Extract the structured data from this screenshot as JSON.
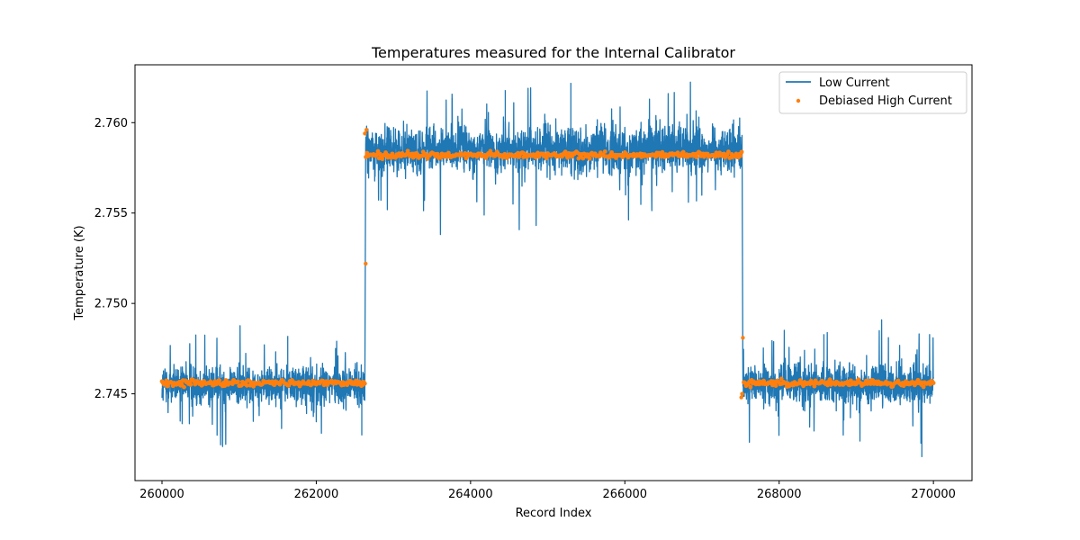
{
  "chart_data": {
    "type": "line",
    "title": "Temperatures measured for the Internal Calibrator",
    "xlabel": "Record Index",
    "ylabel": "Temperature (K)",
    "xlim": [
      259650,
      270500
    ],
    "ylim": [
      2.7402,
      2.7632
    ],
    "x_ticks": [
      260000,
      262000,
      264000,
      266000,
      268000,
      270000
    ],
    "x_tick_labels": [
      "260000",
      "262000",
      "264000",
      "266000",
      "268000",
      "270000"
    ],
    "y_ticks": [
      2.745,
      2.75,
      2.755,
      2.76
    ],
    "y_tick_labels": [
      "2.745",
      "2.750",
      "2.755",
      "2.760"
    ],
    "grid": false,
    "legend_position": "upper-right",
    "x_range": [
      260000,
      270000
    ],
    "segments": [
      {
        "x_start": 260000,
        "x_end": 262630,
        "low_base": 2.7455,
        "low_spread": 1.4,
        "debiased_level": 2.7456
      },
      {
        "x_start": 262640,
        "x_end": 267520,
        "low_base": 2.7585,
        "low_spread": 1.6,
        "debiased_level": 2.7582
      },
      {
        "x_start": 267530,
        "x_end": 270000,
        "low_base": 2.7455,
        "low_spread": 1.4,
        "debiased_level": 2.7456
      }
    ],
    "series": [
      {
        "name": "Low Current",
        "style": "line",
        "color": "#1f77b4"
      },
      {
        "name": "Debiased High Current",
        "style": "scatter",
        "color": "#ff7f0e"
      }
    ]
  }
}
